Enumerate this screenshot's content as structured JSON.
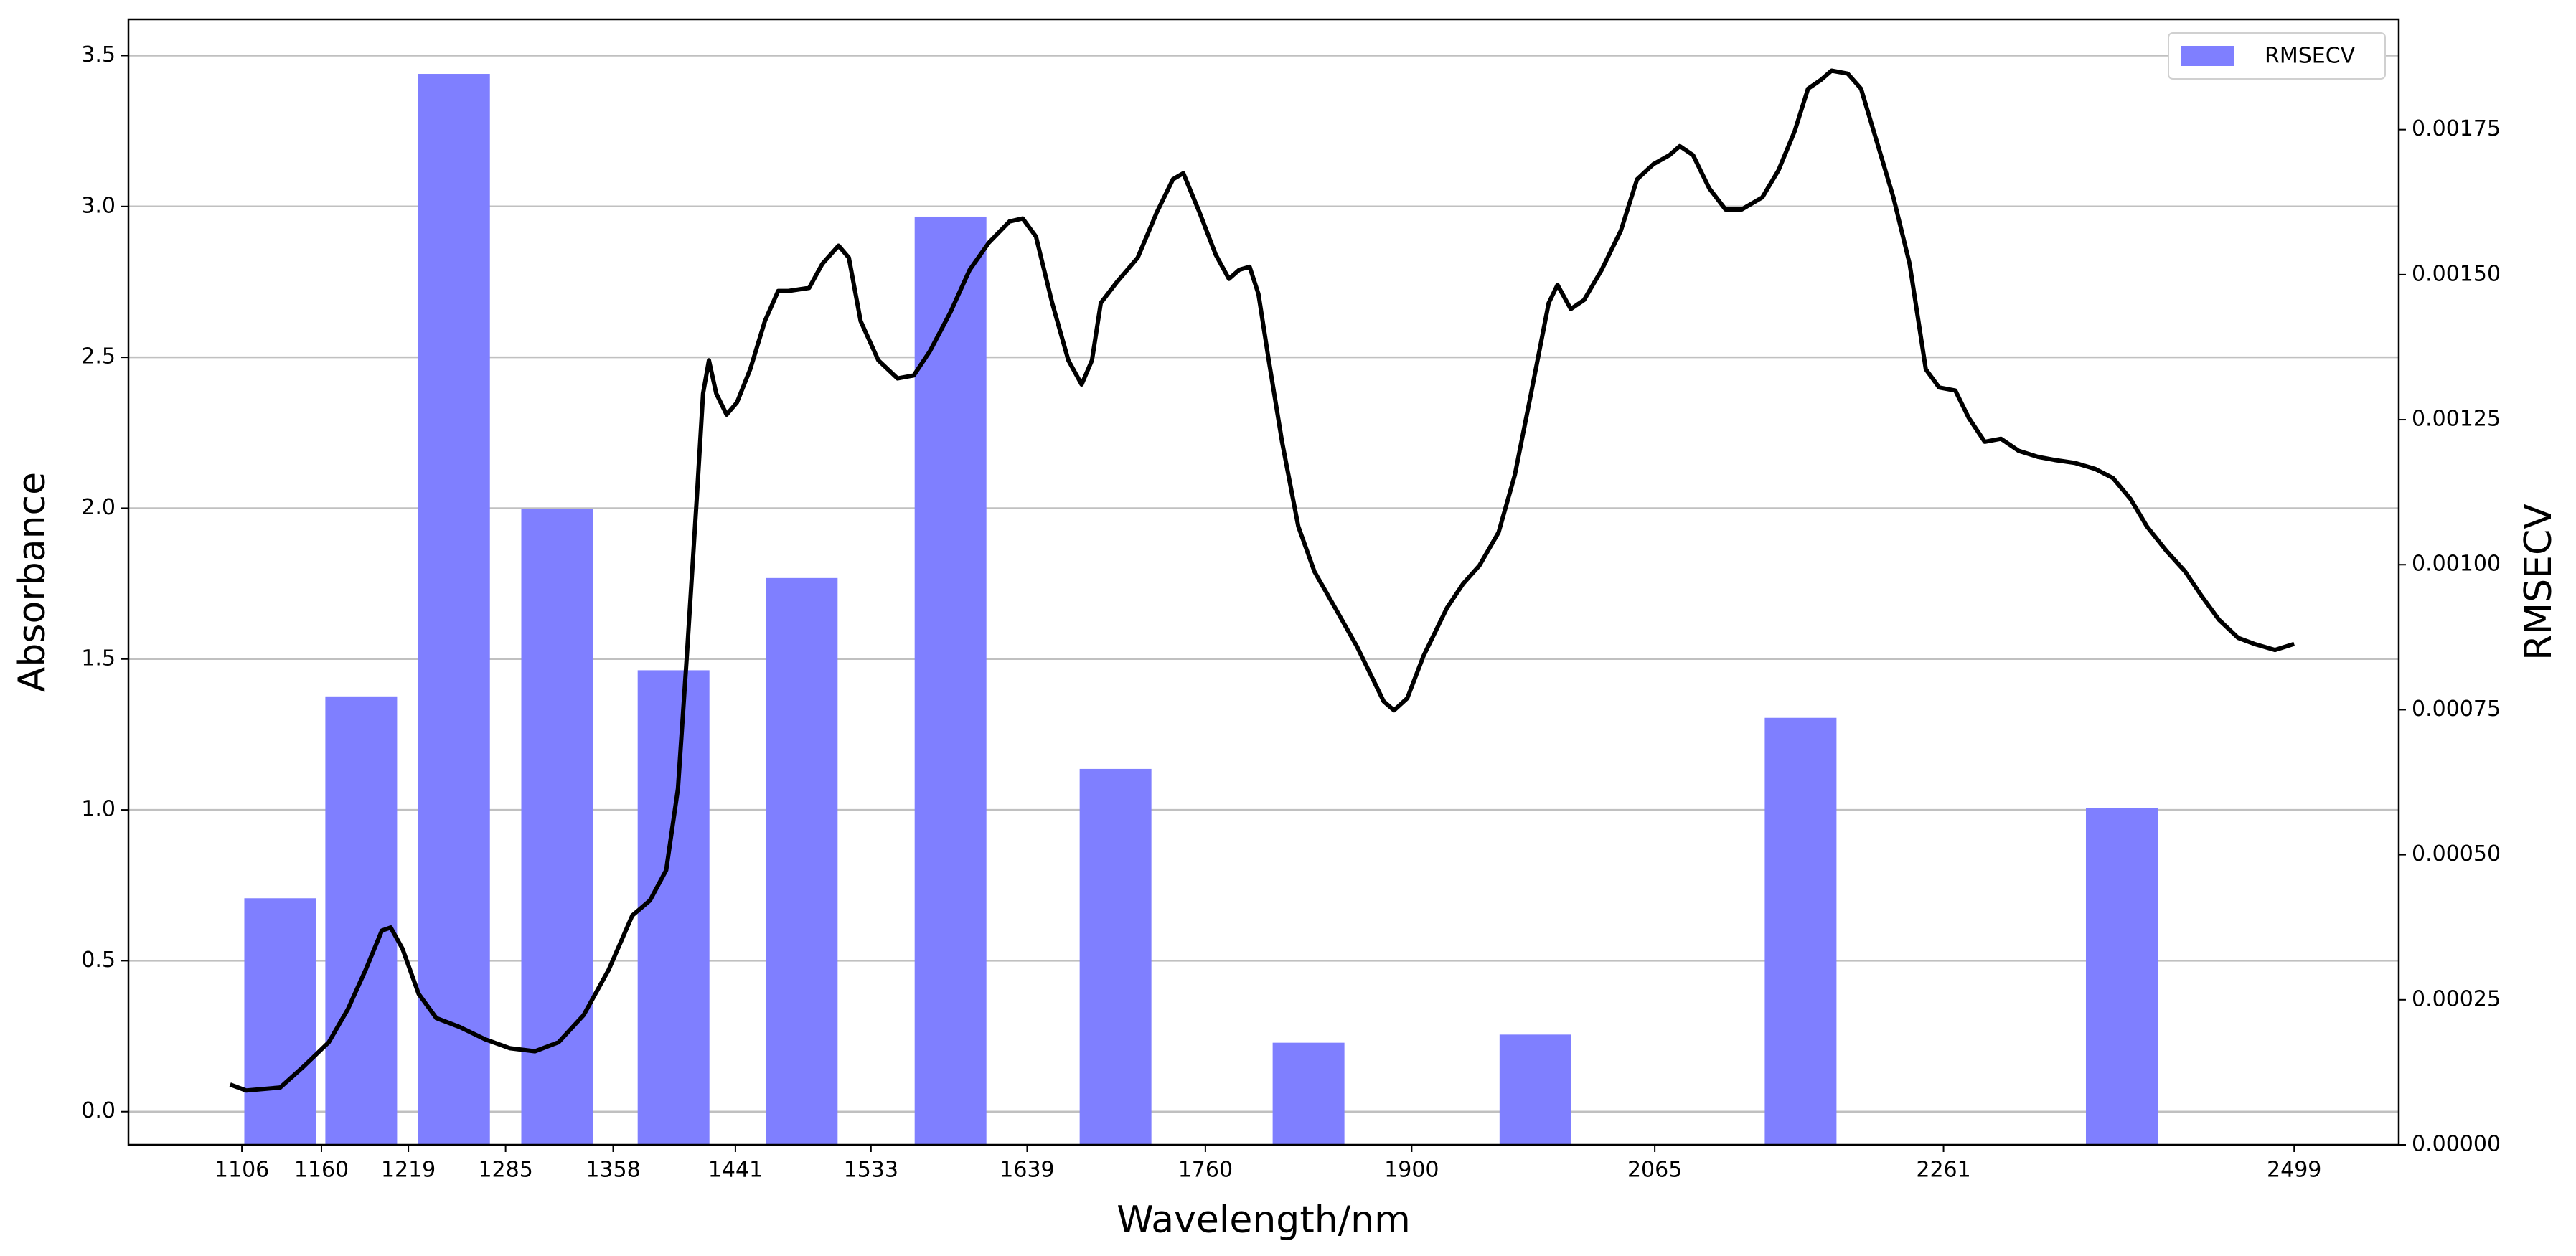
{
  "chart_data": [
    {
      "type": "line",
      "xlabel": "Wavelength/nm",
      "ylabel": "Absorbance",
      "color": "#000000",
      "grid": true,
      "xlim": [
        1029,
        2570
      ],
      "xticks": [
        1106,
        1160,
        1219,
        1285,
        1358,
        1441,
        1533,
        1639,
        1760,
        1900,
        2065,
        2261,
        2499
      ],
      "ylim": [
        -0.11,
        3.62
      ],
      "yticks": [
        {
          "value": 0,
          "label": "0.0"
        },
        0.5,
        {
          "value": 1,
          "label": "1.0"
        },
        1.5,
        {
          "value": 2,
          "label": "2.0"
        },
        2.5,
        {
          "value": 3,
          "label": "3.0"
        },
        3.5
      ],
      "x": [
        1098,
        1109,
        1132,
        1148,
        1165,
        1178,
        1190,
        1201,
        1207,
        1215,
        1226,
        1238,
        1254,
        1271,
        1288,
        1305,
        1321,
        1338,
        1355,
        1371,
        1383,
        1394,
        1402,
        1408,
        1415,
        1419,
        1423,
        1428,
        1435,
        1442,
        1451,
        1461,
        1470,
        1477,
        1491,
        1500,
        1511,
        1518,
        1526,
        1538,
        1551,
        1562,
        1573,
        1587,
        1600,
        1613,
        1627,
        1636,
        1645,
        1656,
        1667,
        1676,
        1683,
        1689,
        1700,
        1714,
        1727,
        1738,
        1745,
        1756,
        1767,
        1776,
        1783,
        1790,
        1796,
        1803,
        1812,
        1823,
        1834,
        1848,
        1863,
        1874,
        1881,
        1888,
        1897,
        1908,
        1924,
        1935,
        1946,
        1959,
        1970,
        1981,
        1993,
        1999,
        2008,
        2017,
        2029,
        2042,
        2053,
        2064,
        2075,
        2082,
        2091,
        2102,
        2113,
        2124,
        2138,
        2149,
        2160,
        2169,
        2178,
        2185,
        2196,
        2205,
        2216,
        2227,
        2238,
        2249,
        2258,
        2269,
        2278,
        2289,
        2300,
        2312,
        2325,
        2336,
        2350,
        2364,
        2376,
        2388,
        2399,
        2412,
        2425,
        2436,
        2448,
        2461,
        2472,
        2486,
        2499
      ],
      "values": [
        0.09,
        0.07,
        0.08,
        0.15,
        0.23,
        0.34,
        0.47,
        0.6,
        0.61,
        0.54,
        0.39,
        0.31,
        0.28,
        0.24,
        0.21,
        0.2,
        0.23,
        0.32,
        0.47,
        0.65,
        0.7,
        0.8,
        1.07,
        1.51,
        2.05,
        2.38,
        2.49,
        2.38,
        2.31,
        2.35,
        2.46,
        2.62,
        2.72,
        2.72,
        2.73,
        2.81,
        2.87,
        2.83,
        2.62,
        2.49,
        2.43,
        2.44,
        2.52,
        2.65,
        2.79,
        2.88,
        2.95,
        2.96,
        2.9,
        2.68,
        2.49,
        2.41,
        2.49,
        2.68,
        2.75,
        2.83,
        2.98,
        3.09,
        3.11,
        2.98,
        2.84,
        2.76,
        2.79,
        2.8,
        2.71,
        2.49,
        2.22,
        1.94,
        1.79,
        1.67,
        1.54,
        1.43,
        1.36,
        1.33,
        1.37,
        1.51,
        1.67,
        1.75,
        1.81,
        1.92,
        2.11,
        2.38,
        2.68,
        2.74,
        2.66,
        2.69,
        2.79,
        2.92,
        3.09,
        3.14,
        3.17,
        3.2,
        3.17,
        3.06,
        2.99,
        2.99,
        3.03,
        3.12,
        3.25,
        3.39,
        3.42,
        3.45,
        3.44,
        3.39,
        3.21,
        3.03,
        2.81,
        2.46,
        2.4,
        2.39,
        2.3,
        2.22,
        2.23,
        2.19,
        2.17,
        2.16,
        2.15,
        2.13,
        2.1,
        2.03,
        1.94,
        1.86,
        1.79,
        1.71,
        1.63,
        1.57,
        1.55,
        1.53,
        1.55
      ]
    },
    {
      "type": "bar",
      "ylabel": "RMSECV",
      "legend": "upper right",
      "y2lim": [
        0,
        0.00194
      ],
      "y2ticks": [
        {
          "value": 0,
          "label": "0.00000"
        },
        0.00025,
        {
          "value": 0.0005,
          "label": "0.00050"
        },
        0.00075,
        {
          "value": 0.001,
          "label": "0.00100"
        },
        0.00125,
        {
          "value": 0.0015,
          "label": "0.00150"
        },
        0.00175
      ],
      "x": [
        1132,
        1187,
        1250,
        1320,
        1399,
        1486,
        1587,
        1699,
        1830,
        1984,
        2164,
        2382
      ],
      "series": [
        {
          "name": "RMSECV",
          "color": "#7f7fff",
          "axis": "y2",
          "values": [
            0.000425,
            0.000773,
            0.001846,
            0.001096,
            0.000818,
            0.000977,
            0.0016,
            0.000648,
            0.000176,
            0.00019,
            0.000736,
            0.00058
          ]
        }
      ]
    }
  ]
}
